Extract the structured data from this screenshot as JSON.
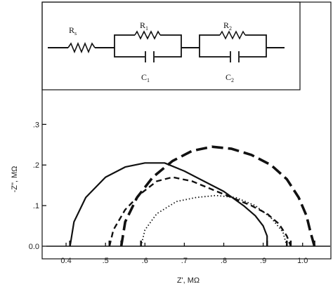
{
  "chart_data": {
    "type": "line",
    "title": "",
    "xlabel": "Z', MΩ",
    "ylabel": "-Z\", MΩ",
    "xlim": [
      0.35,
      1.07
    ],
    "ylim": [
      0.0,
      0.33
    ],
    "xticks": [
      "0.4",
      ".5",
      ".6",
      ".7",
      ".8",
      ".9",
      "1.0"
    ],
    "xtick_values": [
      0.4,
      0.5,
      0.6,
      0.7,
      0.8,
      0.9,
      1.0
    ],
    "yticks": [
      "0.0",
      ".1",
      ".2",
      ".3"
    ],
    "ytick_values": [
      0.0,
      0.1,
      0.2,
      0.3
    ],
    "legend": "none",
    "grid": false,
    "series": [
      {
        "style": "solid",
        "x": [
          0.41,
          0.42,
          0.45,
          0.5,
          0.55,
          0.6,
          0.65,
          0.7,
          0.75,
          0.8,
          0.85,
          0.88,
          0.9,
          0.91,
          0.91
        ],
        "y": [
          0.0,
          0.06,
          0.12,
          0.17,
          0.195,
          0.205,
          0.205,
          0.185,
          0.16,
          0.135,
          0.1,
          0.075,
          0.05,
          0.025,
          0.0
        ]
      },
      {
        "style": "long-dash",
        "x": [
          0.54,
          0.55,
          0.58,
          0.62,
          0.67,
          0.72,
          0.77,
          0.82,
          0.87,
          0.92,
          0.96,
          0.99,
          1.01,
          1.02,
          1.03
        ],
        "y": [
          0.0,
          0.06,
          0.12,
          0.17,
          0.21,
          0.235,
          0.245,
          0.24,
          0.225,
          0.2,
          0.165,
          0.12,
          0.075,
          0.035,
          0.0
        ]
      },
      {
        "style": "short-dash",
        "x": [
          0.51,
          0.52,
          0.55,
          0.59,
          0.63,
          0.67,
          0.72,
          0.77,
          0.82,
          0.87,
          0.91,
          0.94,
          0.96,
          0.97
        ],
        "y": [
          0.0,
          0.04,
          0.09,
          0.13,
          0.16,
          0.17,
          0.16,
          0.14,
          0.12,
          0.1,
          0.08,
          0.055,
          0.025,
          0.0
        ]
      },
      {
        "style": "dotted",
        "x": [
          0.59,
          0.6,
          0.63,
          0.68,
          0.73,
          0.78,
          0.83,
          0.88,
          0.92,
          0.95,
          0.96
        ],
        "y": [
          0.0,
          0.04,
          0.08,
          0.11,
          0.12,
          0.125,
          0.12,
          0.1,
          0.07,
          0.035,
          0.0
        ]
      }
    ]
  },
  "circuit": {
    "labels": [
      "R",
      "R",
      "C",
      "R",
      "C"
    ],
    "subscripts": [
      "s",
      "1",
      "1",
      "2",
      "2"
    ]
  }
}
